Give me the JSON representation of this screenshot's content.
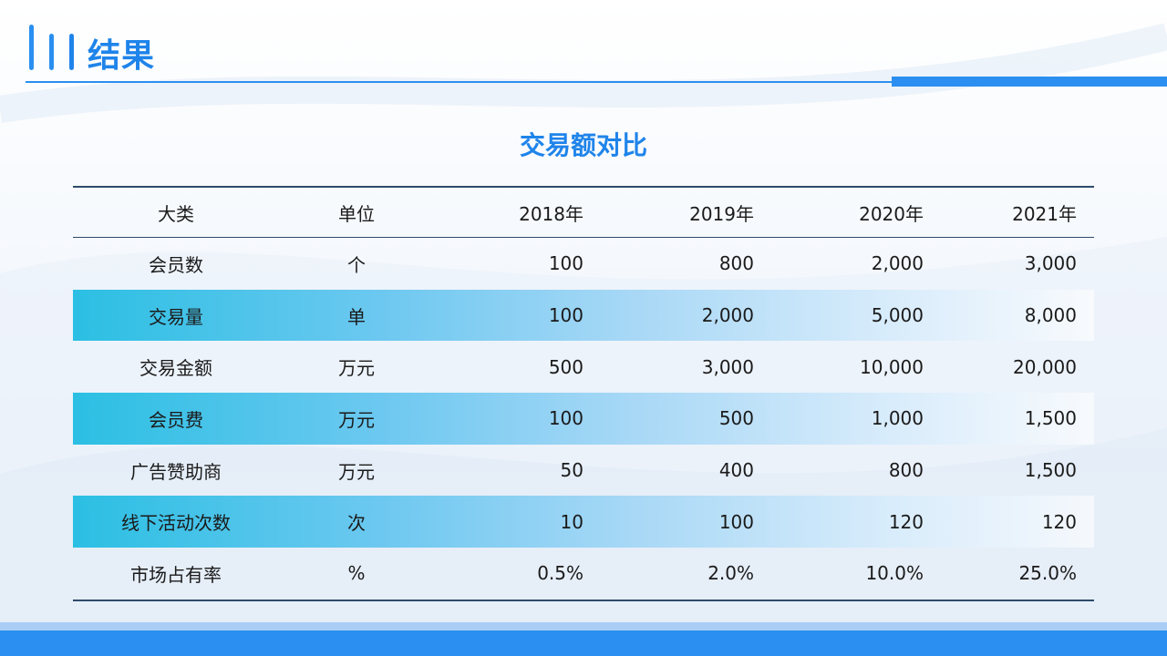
{
  "page": {
    "title": "结果"
  },
  "table": {
    "title": "交易额对比",
    "headers": [
      "大类",
      "单位",
      "2018年",
      "2019年",
      "2020年",
      "2021年"
    ],
    "rows": [
      [
        "会员数",
        "个",
        "100",
        "800",
        "2,000",
        "3,000"
      ],
      [
        "交易量",
        "单",
        "100",
        "2,000",
        "5,000",
        "8,000"
      ],
      [
        "交易金额",
        "万元",
        "500",
        "3,000",
        "10,000",
        "20,000"
      ],
      [
        "会员费",
        "万元",
        "100",
        "500",
        "1,000",
        "1,500"
      ],
      [
        "广告赞助商",
        "万元",
        "50",
        "400",
        "800",
        "1,500"
      ],
      [
        "线下活动次数",
        "次",
        "10",
        "100",
        "120",
        "120"
      ],
      [
        "市场占有率",
        "%",
        "0.5%",
        "2.0%",
        "10.0%",
        "25.0%"
      ]
    ]
  },
  "colors": {
    "accent": "#2a8ff0",
    "title": "#1f84ea",
    "rule": "#2d4a6b",
    "row_shade_start": "#2bbfe3"
  }
}
